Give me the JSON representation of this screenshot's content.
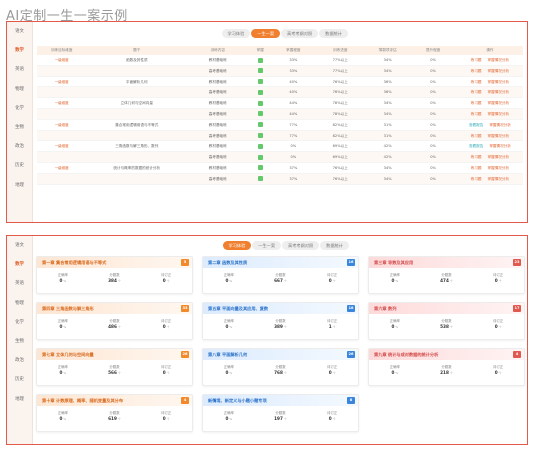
{
  "page_title": "AI定制一生一案示例",
  "subjects": [
    "语文",
    "数学",
    "英语",
    "物理",
    "化学",
    "生物",
    "政治",
    "历史",
    "地理"
  ],
  "active_subject_index": 1,
  "panel1": {
    "tabs": [
      {
        "label": "学习体验"
      },
      {
        "label": "一生一案"
      },
      {
        "label": "高考考纲对照"
      },
      {
        "label": "数据统计"
      }
    ],
    "active_tab": 1,
    "columns": [
      "训练目标维度",
      "题干",
      "训练内容",
      "掌握",
      "掌握程度",
      "训练进度",
      "薄弱项评估",
      "提升程度",
      "操作"
    ],
    "rows": [
      {
        "level": "一级维度",
        "topic": "函数及其性质",
        "items": [
          {
            "content": "教材基础练",
            "progress": "33%",
            "status": "77%以上",
            "weak": "34%",
            "improve": "0%",
            "act": "练习题",
            "act2": "掌握情况分析"
          },
          {
            "content": "高考基础练",
            "progress": "33%",
            "status": "77%以上",
            "weak": "34%",
            "improve": "0%",
            "act": "练习题",
            "act2": "掌握情况分析"
          }
        ]
      },
      {
        "level": "一级维度",
        "topic": "平面解析几何",
        "items": [
          {
            "content": "教材基础练",
            "progress": "40%",
            "status": "76%以上",
            "weak": "36%",
            "improve": "0%",
            "act": "练习题",
            "act2": "掌握情况分析"
          },
          {
            "content": "高考基础练",
            "progress": "40%",
            "status": "76%以上",
            "weak": "36%",
            "improve": "0%",
            "act": "练习题",
            "act2": "掌握情况分析"
          }
        ]
      },
      {
        "level": "一级维度",
        "topic": "立体几何与空间向量",
        "items": [
          {
            "content": "教材基础练",
            "progress": "44%",
            "status": "78%以上",
            "weak": "34%",
            "improve": "0%",
            "act": "练习题",
            "act2": "掌握情况分析"
          },
          {
            "content": "高考基础练",
            "progress": "44%",
            "status": "78%以上",
            "weak": "34%",
            "improve": "0%",
            "act": "练习题",
            "act2": "掌握情况分析"
          }
        ]
      },
      {
        "level": "一级维度",
        "topic": "集合常用逻辑用语与不等式",
        "items": [
          {
            "content": "教材基础练",
            "progress": "77%",
            "status": "82%以上",
            "weak": "31%",
            "improve": "0%",
            "act": "查看报告",
            "act2": "掌握情况分析"
          },
          {
            "content": "高考基础练",
            "progress": "77%",
            "status": "82%以上",
            "weak": "31%",
            "improve": "0%",
            "act": "练习题",
            "act2": "掌握情况分析"
          }
        ]
      },
      {
        "level": "一级维度",
        "topic": "三角函数与解三角形、数列",
        "items": [
          {
            "content": "教材基础练",
            "progress": "0%",
            "status": "69%以上",
            "weak": "42%",
            "improve": "0%",
            "act": "查看报告",
            "act2": "掌握情况分析"
          },
          {
            "content": "高考基础练",
            "progress": "0%",
            "status": "69%以上",
            "weak": "42%",
            "improve": "0%",
            "act": "练习题",
            "act2": "掌握情况分析"
          }
        ]
      },
      {
        "level": "一级维度",
        "topic": "统计与概率的数据的统计分析",
        "items": [
          {
            "content": "教材基础练",
            "progress": "37%",
            "status": "76%以上",
            "weak": "34%",
            "improve": "0%",
            "act": "练习题",
            "act2": "掌握情况分析"
          },
          {
            "content": "高考基础练",
            "progress": "37%",
            "status": "76%以上",
            "weak": "34%",
            "improve": "0%",
            "act": "练习题",
            "act2": "掌握情况分析"
          }
        ]
      }
    ]
  },
  "panel2": {
    "tabs": [
      {
        "label": "学习体验"
      },
      {
        "label": "一生一案"
      },
      {
        "label": "高考考纲对照"
      },
      {
        "label": "数据统计"
      }
    ],
    "active_tab": 0,
    "stat_labels": [
      "正确率",
      "分题数",
      "待订正"
    ],
    "units": [
      "%",
      "个",
      "个"
    ],
    "cards": [
      {
        "title": "第一章 集合常用逻辑用语与不等式",
        "badge": "5",
        "color": "orange",
        "values": [
          "0",
          "384",
          "0"
        ]
      },
      {
        "title": "第二章 函数及其性质",
        "badge": "16",
        "color": "blue",
        "values": [
          "0",
          "667",
          "0"
        ]
      },
      {
        "title": "第三章 导数及其应用",
        "badge": "23",
        "color": "red",
        "values": [
          "0",
          "474",
          "0"
        ]
      },
      {
        "title": "第四章 三角函数与解三角形",
        "badge": "33",
        "color": "orange",
        "values": [
          "0",
          "486",
          "0"
        ]
      },
      {
        "title": "第五章 平面向量及其应用、复数",
        "badge": "18",
        "color": "blue",
        "values": [
          "0",
          "389",
          "1"
        ]
      },
      {
        "title": "第六章 数列",
        "badge": "17",
        "color": "red",
        "values": [
          "0",
          "538",
          "0"
        ]
      },
      {
        "title": "第七章 立体几何与空间向量",
        "badge": "26",
        "color": "orange",
        "values": [
          "0",
          "566",
          "0"
        ]
      },
      {
        "title": "第八章 平面解析几何",
        "badge": "26",
        "color": "blue",
        "values": [
          "0",
          "768",
          "0"
        ]
      },
      {
        "title": "第九章 统计与成对数据的统计分析",
        "badge": "4",
        "color": "red",
        "values": [
          "0",
          "218",
          "0"
        ]
      },
      {
        "title": "第十章 计数原理、概率、随机变量及其分布",
        "badge": "4",
        "color": "orange",
        "values": [
          "0",
          "619",
          "0"
        ]
      },
      {
        "title": "新情境、新定义与小题小题专项",
        "badge": "8",
        "color": "blue",
        "values": [
          "0",
          "197",
          "0"
        ]
      }
    ]
  }
}
